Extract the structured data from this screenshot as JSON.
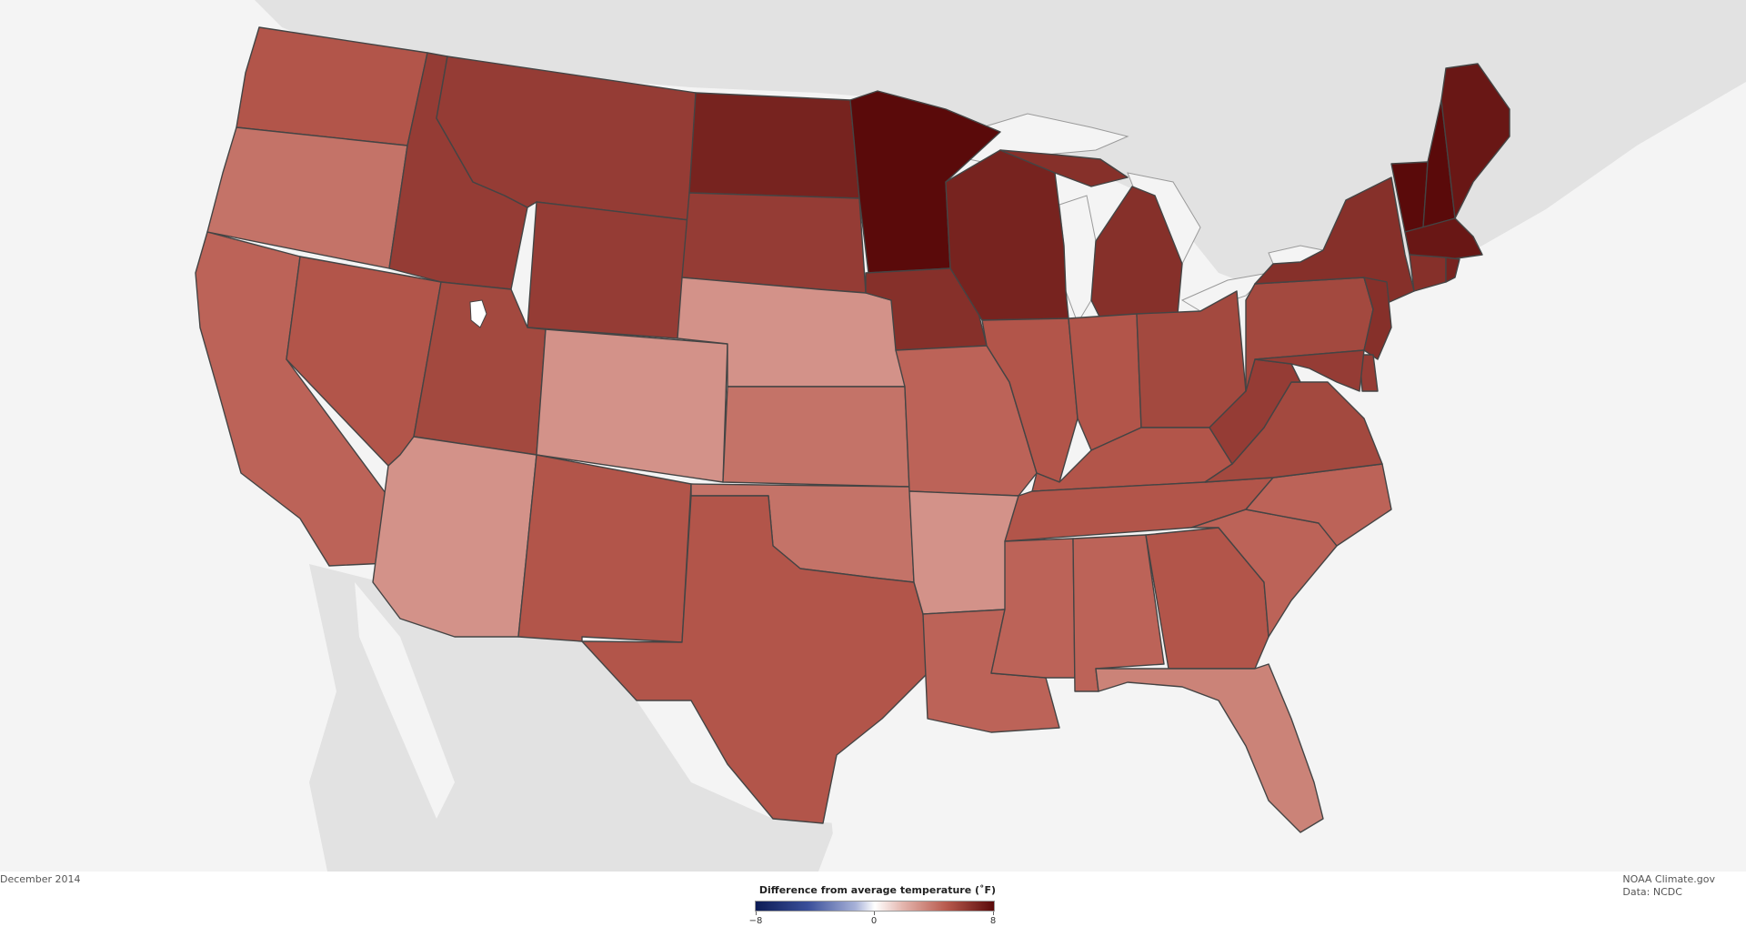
{
  "map": {
    "type": "choropleth",
    "region": "contiguous United States climate divisions",
    "colors": {
      "ocean_background": "#f4f4f4",
      "land_non_us": "#e0e0e0",
      "great_lakes_and_water": "#f4f4f4",
      "state_border": "#444444",
      "anomaly_max_dark": "#5a0a0a",
      "anomaly_neutral": "#ffffff",
      "anomaly_min_dark": "#0d1c55"
    },
    "state_anomaly_levels": {
      "WA": 5.0,
      "OR": 4.0,
      "CA": 4.5,
      "NV": 5.0,
      "ID": 6.0,
      "MT": 6.0,
      "WY": 6.0,
      "UT": 5.5,
      "CO": 3.0,
      "AZ": 3.0,
      "NM": 5.0,
      "ND": 7.0,
      "SD": 6.0,
      "NE": 3.0,
      "KS": 4.0,
      "OK": 4.0,
      "TX": 5.0,
      "MN": 8.0,
      "IA": 6.5,
      "MO": 4.5,
      "AR": 3.0,
      "LA": 4.5,
      "WI": 7.0,
      "IL": 5.0,
      "MI": 6.5,
      "IN": 5.0,
      "OH": 5.5,
      "KY": 5.0,
      "TN": 5.0,
      "MS": 4.5,
      "AL": 4.5,
      "GA": 5.0,
      "FL": 3.5,
      "SC": 4.5,
      "NC": 4.5,
      "VA": 5.5,
      "WV": 6.0,
      "PA": 5.5,
      "NY": 6.5,
      "VT": 8.0,
      "NH": 8.0,
      "ME": 7.5,
      "MA": 7.5,
      "CT": 6.5,
      "RI": 7.0,
      "NJ": 6.5,
      "DE": 6.0,
      "MD": 6.0
    }
  },
  "footer": {
    "date": "December 2014",
    "credit_line1": "NOAA Climate.gov",
    "credit_line2": "Data: NCDC"
  },
  "legend": {
    "title": "Difference from average temperature (˚F)",
    "min_label": "−8",
    "mid_label": "0",
    "max_label": "8",
    "min_value": -8,
    "max_value": 8
  }
}
